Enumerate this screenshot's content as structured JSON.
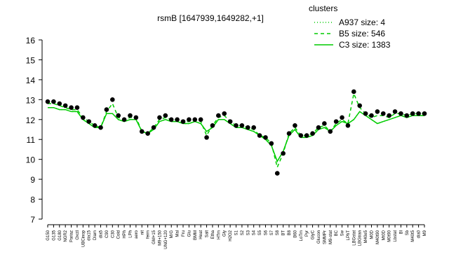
{
  "chart_data": {
    "type": "line",
    "title": "rsmB [1647939,1649282,+1]",
    "legend_title": "clusters",
    "legend_position": "topright",
    "point_color": "#000000",
    "categories": [
      "G150",
      "G135",
      "G180",
      "NGR2",
      "Pariaz",
      "Oxctl",
      "UBCinop",
      "dia15",
      "Diam",
      "dia5",
      "C90",
      "C30",
      "Cold",
      "HPh",
      "LPh",
      "aero",
      "nit",
      "ferm",
      "GM+15",
      "M9+150",
      "UNG+120",
      "M/G",
      "Mal",
      "Fru",
      "Glu",
      "BMM",
      "Heat",
      "Salt",
      "Etha",
      "HTm",
      "Gly",
      "H2O2",
      "S1",
      "S2",
      "S3",
      "S4",
      "S5",
      "S6",
      "S7",
      "S8",
      "BT",
      "B8",
      "B60",
      "LoTm",
      "Pyr",
      "GlyC",
      "Glucon",
      "SMMPr",
      "M9-stat",
      "BC",
      "Sw",
      "LPhT",
      "LBGstat",
      "LBGtran",
      "M40e5",
      "M0D",
      "M40t90",
      "Mt0D",
      "M0t90",
      "Lbstat",
      "Bl",
      "Sb",
      "M40t5",
      "dia0",
      "M9"
    ],
    "values": [
      12.9,
      12.9,
      12.8,
      12.7,
      12.6,
      12.6,
      12.1,
      11.9,
      11.7,
      11.6,
      12.5,
      13.0,
      12.2,
      12.0,
      12.2,
      12.1,
      11.4,
      11.3,
      11.6,
      12.1,
      12.2,
      12.0,
      12.0,
      11.9,
      12.0,
      12.0,
      12.0,
      11.1,
      11.7,
      12.2,
      12.3,
      11.9,
      11.7,
      11.7,
      11.6,
      11.6,
      11.2,
      11.1,
      10.8,
      9.3,
      10.3,
      11.3,
      11.7,
      11.2,
      11.2,
      11.3,
      11.6,
      11.8,
      11.4,
      11.9,
      12.1,
      11.7,
      13.4,
      12.7,
      12.3,
      12.2,
      12.4,
      12.3,
      12.2,
      12.4,
      12.3,
      12.2,
      12.3,
      12.3,
      12.3
    ],
    "series": [
      {
        "name": "A937 size: 4",
        "color": "#00cc00",
        "dash": "dotted",
        "values": [
          12.6,
          12.6,
          12.5,
          12.5,
          12.4,
          12.4,
          12.0,
          11.8,
          11.6,
          11.6,
          12.3,
          12.3,
          12.0,
          11.9,
          12.0,
          12.0,
          11.4,
          11.3,
          11.5,
          11.9,
          12.0,
          11.9,
          11.9,
          11.8,
          11.8,
          11.9,
          11.8,
          11.4,
          11.6,
          12.0,
          12.0,
          11.8,
          11.6,
          11.6,
          11.5,
          11.4,
          11.2,
          11.0,
          10.7,
          9.9,
          10.4,
          11.2,
          11.5,
          11.1,
          11.1,
          11.2,
          11.5,
          11.6,
          11.4,
          11.7,
          11.9,
          11.8,
          12.0,
          12.4,
          12.2,
          12.0,
          11.8,
          11.9,
          12.0,
          12.1,
          12.2,
          12.1,
          12.2,
          12.2,
          12.2
        ]
      },
      {
        "name": "B5 size: 546",
        "color": "#00cc00",
        "dash": "dashed",
        "values": [
          12.8,
          12.8,
          12.7,
          12.6,
          12.5,
          12.5,
          12.1,
          11.9,
          11.7,
          11.6,
          12.4,
          12.8,
          12.1,
          12.0,
          12.1,
          12.1,
          11.4,
          11.3,
          11.6,
          12.0,
          12.1,
          12.0,
          12.0,
          11.9,
          11.9,
          12.0,
          11.9,
          11.2,
          11.7,
          12.1,
          12.2,
          11.9,
          11.7,
          11.7,
          11.6,
          11.5,
          11.2,
          11.1,
          10.8,
          9.6,
          10.3,
          11.3,
          11.6,
          11.2,
          11.2,
          11.3,
          11.6,
          11.7,
          11.4,
          11.8,
          12.0,
          11.8,
          13.3,
          12.6,
          12.3,
          12.1,
          12.2,
          12.2,
          12.1,
          12.3,
          12.3,
          12.2,
          12.3,
          12.3,
          12.3
        ]
      },
      {
        "name": "C3 size: 1383",
        "color": "#00cc00",
        "dash": "solid",
        "values": [
          12.6,
          12.6,
          12.5,
          12.5,
          12.4,
          12.4,
          12.0,
          11.8,
          11.6,
          11.6,
          12.3,
          12.3,
          12.0,
          11.9,
          12.0,
          12.0,
          11.4,
          11.3,
          11.5,
          11.9,
          12.0,
          11.9,
          11.9,
          11.8,
          11.8,
          11.9,
          11.8,
          11.4,
          11.6,
          12.0,
          12.0,
          11.8,
          11.6,
          11.6,
          11.5,
          11.4,
          11.2,
          11.0,
          10.7,
          9.9,
          10.4,
          11.2,
          11.5,
          11.1,
          11.1,
          11.2,
          11.5,
          11.6,
          11.4,
          11.7,
          11.9,
          11.8,
          12.0,
          12.4,
          12.2,
          12.0,
          11.8,
          11.9,
          12.0,
          12.1,
          12.2,
          12.1,
          12.2,
          12.2,
          12.2
        ]
      }
    ],
    "ylim": [
      7,
      16
    ],
    "yticks": [
      7,
      8,
      9,
      10,
      11,
      12,
      13,
      14,
      15,
      16
    ]
  }
}
